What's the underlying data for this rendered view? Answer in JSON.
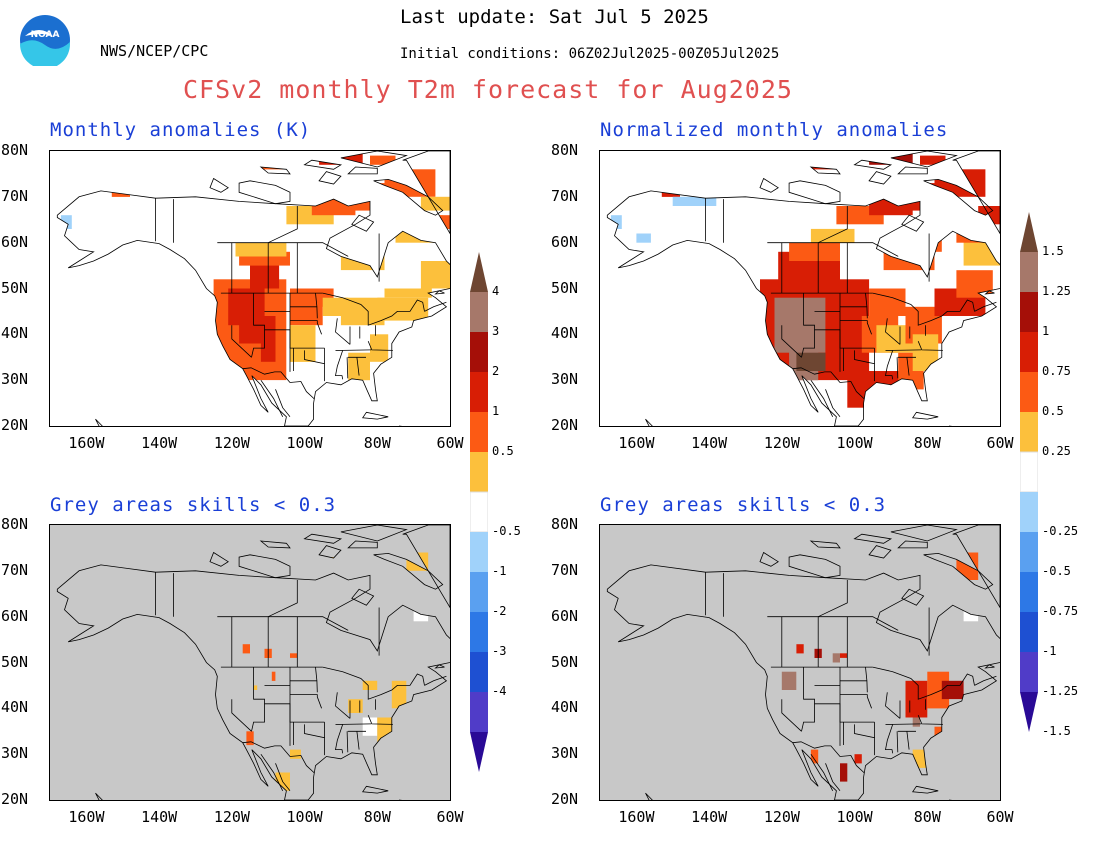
{
  "header": {
    "last_update": "Last update: Sat Jul 5 2025",
    "agency": "NWS/NCEP/CPC",
    "initial_conditions": "Initial conditions: 06Z02Jul2025-00Z05Jul2025",
    "main_title": "CFSv2 monthly T2m forecast for Aug2025",
    "logo_text": "NOAA"
  },
  "colors": {
    "title": "#e05050",
    "panel_title": "#1a3fd6",
    "land": "#ffffff",
    "masked_grey": "#c8c8c8",
    "warm": [
      "#fcc03c",
      "#fc5a14",
      "#d81e05",
      "#a50f08",
      "#a6786a",
      "#6e4632"
    ],
    "cool": [
      "#a0d2fa",
      "#5aa0f0",
      "#2d78e6",
      "#1e50d2",
      "#503cc8",
      "#2a0a96"
    ]
  },
  "panels": [
    {
      "title": "Monthly anomalies (K)",
      "kind": "anomaly",
      "masked": false
    },
    {
      "title": "Normalized monthly anomalies",
      "kind": "normalized",
      "masked": false
    },
    {
      "title": "Grey areas skills < 0.3",
      "kind": "anomaly",
      "masked": true
    },
    {
      "title": "Grey areas skills < 0.3",
      "kind": "normalized",
      "masked": true
    }
  ],
  "axes": {
    "lat_labels": [
      "80N",
      "70N",
      "60N",
      "50N",
      "40N",
      "30N",
      "20N"
    ],
    "lon_labels": [
      "160W",
      "140W",
      "120W",
      "100W",
      "80W",
      "60W"
    ]
  },
  "colorbars": [
    {
      "name": "anomaly",
      "labels": [
        "4",
        "3",
        "2",
        "1",
        "0.5",
        "-0.5",
        "-1",
        "-2",
        "-3",
        "-4"
      ]
    },
    {
      "name": "normalized",
      "labels": [
        "1.5",
        "1.25",
        "1",
        "0.75",
        "0.5",
        "0.25",
        "-0.25",
        "-0.5",
        "-0.75",
        "-1",
        "-1.25",
        "-1.5"
      ]
    }
  ]
}
